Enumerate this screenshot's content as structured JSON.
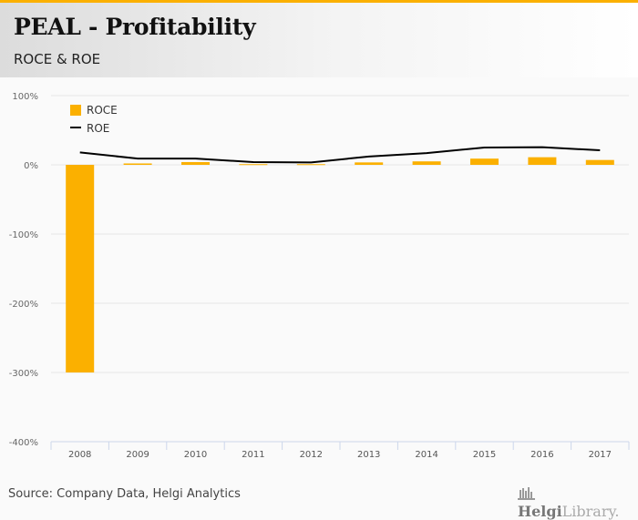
{
  "header": {
    "title": "PEAL - Profitability",
    "subtitle": "ROCE & ROE"
  },
  "colors": {
    "accent": "#fbb000",
    "roce": "#fbb000",
    "roe": "#000000",
    "grid": "#e6e6e6",
    "axis": "#ccd6eb"
  },
  "chart_data": {
    "type": "bar",
    "title": "PEAL - Profitability",
    "subtitle": "ROCE & ROE",
    "categories": [
      "2008",
      "2009",
      "2010",
      "2011",
      "2012",
      "2013",
      "2014",
      "2015",
      "2016",
      "2017"
    ],
    "series": [
      {
        "name": "ROCE",
        "type": "bar",
        "values": [
          -300,
          2,
          4,
          1,
          1,
          3.5,
          5,
          9,
          11,
          7
        ]
      },
      {
        "name": "ROE",
        "type": "line",
        "values": [
          18,
          9,
          9,
          4,
          3.5,
          12,
          17,
          25,
          25.5,
          21
        ]
      }
    ],
    "xlabel": "",
    "ylabel": "",
    "ylim": [
      -400,
      100
    ],
    "yticks": [
      100,
      0,
      -100,
      -200,
      -300,
      -400
    ],
    "ytick_labels": [
      "100%",
      "0%",
      "-100%",
      "-200%",
      "-300%",
      "-400%"
    ],
    "grid": true,
    "legend": {
      "position": "top-left",
      "entries": [
        "ROCE",
        "ROE"
      ]
    }
  },
  "footer": {
    "source": "Source: Company Data, Helgi Analytics",
    "logo_bold": "Helgi",
    "logo_light": "Library."
  }
}
